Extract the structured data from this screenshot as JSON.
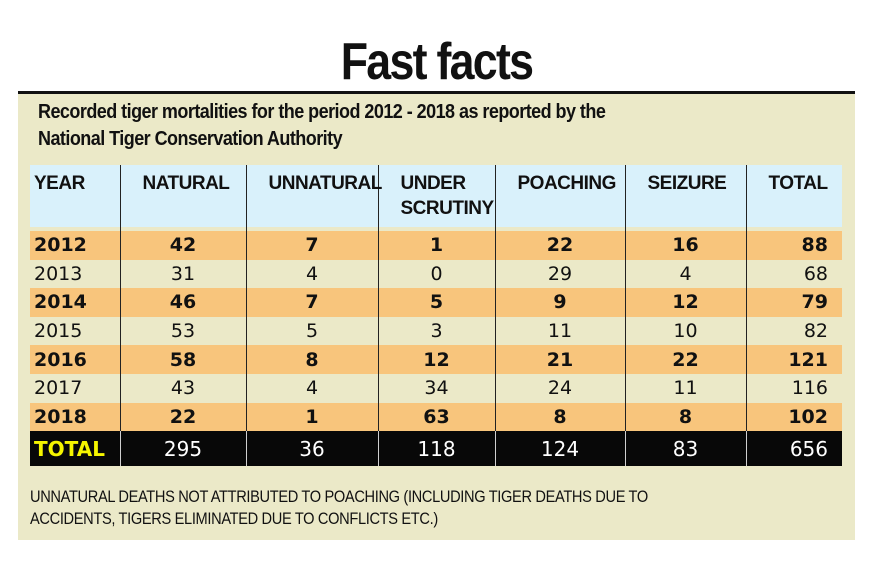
{
  "title": "Fast facts",
  "subtitle_line1": "Recorded tiger mortalities for the period 2012 - 2018 as reported by the",
  "subtitle_line2": "National Tiger Conservation Authority",
  "colors": {
    "panel_bg": "#ebe9c8",
    "header_bg": "#d9f1fb",
    "highlight_row_bg": "#f8c57c",
    "total_row_bg": "#080808",
    "total_label_color": "#f5f500"
  },
  "table": {
    "headers": [
      "YEAR",
      "NATURAL",
      "UNNATURAL",
      "UNDER SCRUTINY",
      "POACHING",
      "SEIZURE",
      "TOTAL"
    ],
    "header_lines": {
      "under_scrutiny_1": "UNDER",
      "under_scrutiny_2": "SCRUTINY"
    },
    "rows": [
      [
        "2012",
        "42",
        "7",
        "1",
        "22",
        "16",
        "88"
      ],
      [
        "2013",
        "31",
        "4",
        "0",
        "29",
        "4",
        "68"
      ],
      [
        "2014",
        "46",
        "7",
        "5",
        "9",
        "12",
        "79"
      ],
      [
        "2015",
        "53",
        "5",
        "3",
        "11",
        "10",
        "82"
      ],
      [
        "2016",
        "58",
        "8",
        "12",
        "21",
        "22",
        "121"
      ],
      [
        "2017",
        "43",
        "4",
        "34",
        "24",
        "11",
        "116"
      ],
      [
        "2018",
        "22",
        "1",
        "63",
        "8",
        "8",
        "102"
      ]
    ],
    "total": [
      "TOTAL",
      "295",
      "36",
      "118",
      "124",
      "83",
      "656"
    ]
  },
  "footnote_line1": "UNNATURAL DEATHS NOT ATTRIBUTED TO POACHING (INCLUDING TIGER DEATHS DUE TO",
  "footnote_line2": "ACCIDENTS, TIGERS ELIMINATED DUE TO CONFLICTS ETC.)"
}
